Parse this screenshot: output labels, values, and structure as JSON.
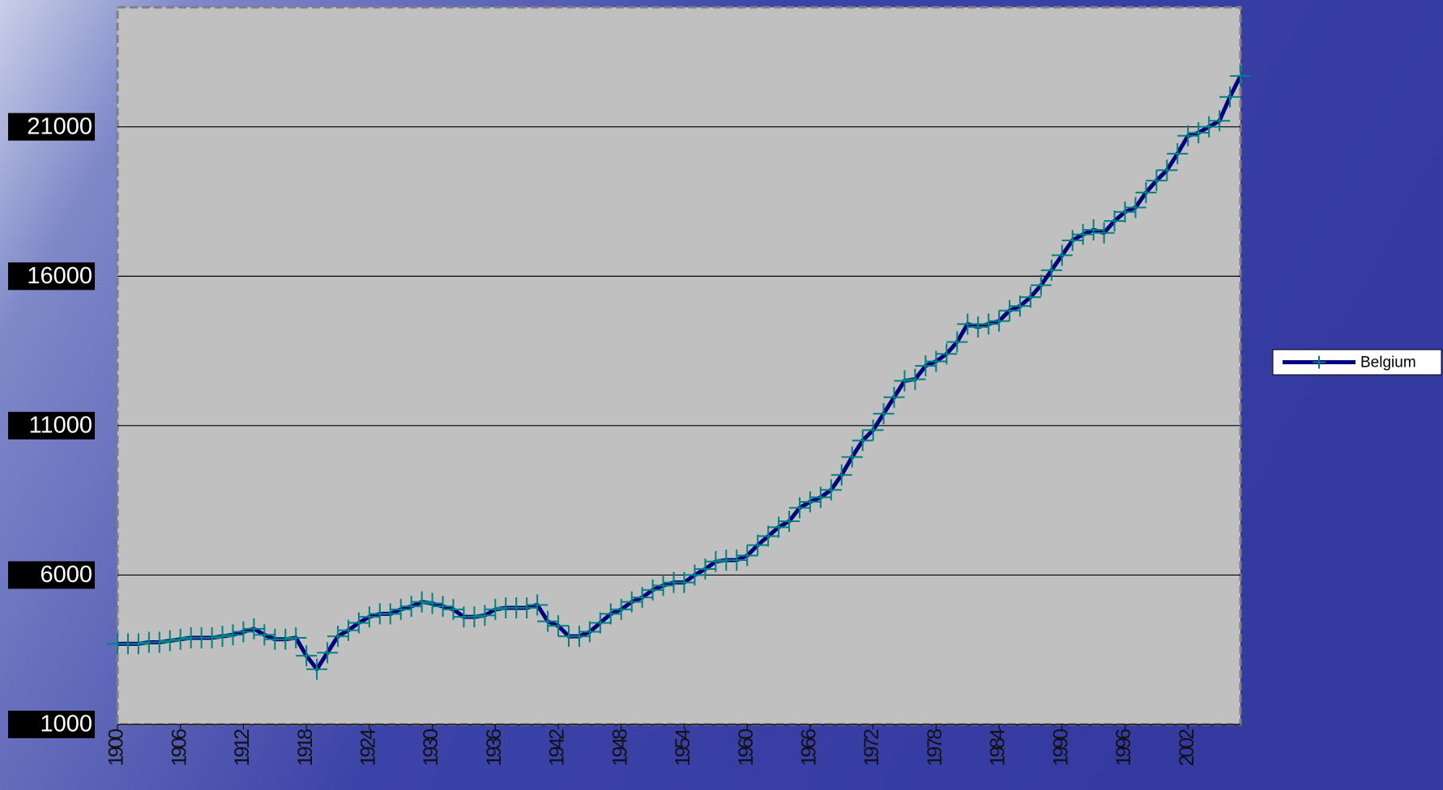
{
  "chart_data": {
    "type": "line",
    "categories": [
      "1900",
      null,
      null,
      null,
      null,
      null,
      "1906",
      null,
      null,
      null,
      null,
      null,
      "1912",
      null,
      null,
      null,
      null,
      null,
      "1918",
      null,
      null,
      null,
      null,
      null,
      "1924",
      null,
      null,
      null,
      null,
      null,
      "1930",
      null,
      null,
      null,
      null,
      null,
      "1936",
      null,
      null,
      null,
      null,
      null,
      "1942",
      null,
      null,
      null,
      null,
      null,
      "1948",
      null,
      null,
      null,
      null,
      null,
      "1954",
      null,
      null,
      null,
      null,
      null,
      "1960",
      null,
      null,
      null,
      null,
      null,
      "1966",
      null,
      null,
      null,
      null,
      null,
      "1972",
      null,
      null,
      null,
      null,
      null,
      "1978",
      null,
      null,
      null,
      null,
      null,
      "1984",
      null,
      null,
      null,
      null,
      null,
      "1990",
      null,
      null,
      null,
      null,
      null,
      "1996",
      null,
      null,
      null,
      null,
      null,
      "2002",
      null,
      null,
      null,
      null,
      null
    ],
    "series": [
      {
        "name": "Belgium",
        "color": "#000080",
        "marker_color": "#008080",
        "values": [
          3700,
          3700,
          3700,
          3750,
          3750,
          3800,
          3850,
          3900,
          3900,
          3900,
          3950,
          4000,
          4100,
          4200,
          4000,
          3850,
          3850,
          3900,
          3300,
          2850,
          3400,
          3950,
          4150,
          4400,
          4600,
          4700,
          4700,
          4850,
          4950,
          5100,
          5050,
          4950,
          4850,
          4600,
          4600,
          4650,
          4850,
          4900,
          4900,
          4900,
          5000,
          4450,
          4300,
          3950,
          3950,
          4100,
          4400,
          4700,
          4850,
          5100,
          5250,
          5500,
          5650,
          5750,
          5750,
          6000,
          6200,
          6450,
          6500,
          6500,
          6650,
          7000,
          7300,
          7600,
          7800,
          8250,
          8450,
          8600,
          8850,
          9350,
          9950,
          10500,
          10850,
          11400,
          11950,
          12500,
          12550,
          13000,
          13150,
          13400,
          13800,
          14400,
          14300,
          14400,
          14500,
          14850,
          15000,
          15300,
          15700,
          16200,
          16700,
          17200,
          17400,
          17550,
          17450,
          17850,
          18150,
          18300,
          18800,
          19200,
          19550,
          20100,
          20700,
          20800,
          21000,
          21200,
          22000,
          22700
        ]
      }
    ],
    "ylim": [
      1000,
      25000
    ],
    "yticks": [
      1000,
      6000,
      11000,
      16000,
      21000
    ],
    "grid": true,
    "legend": "right"
  }
}
